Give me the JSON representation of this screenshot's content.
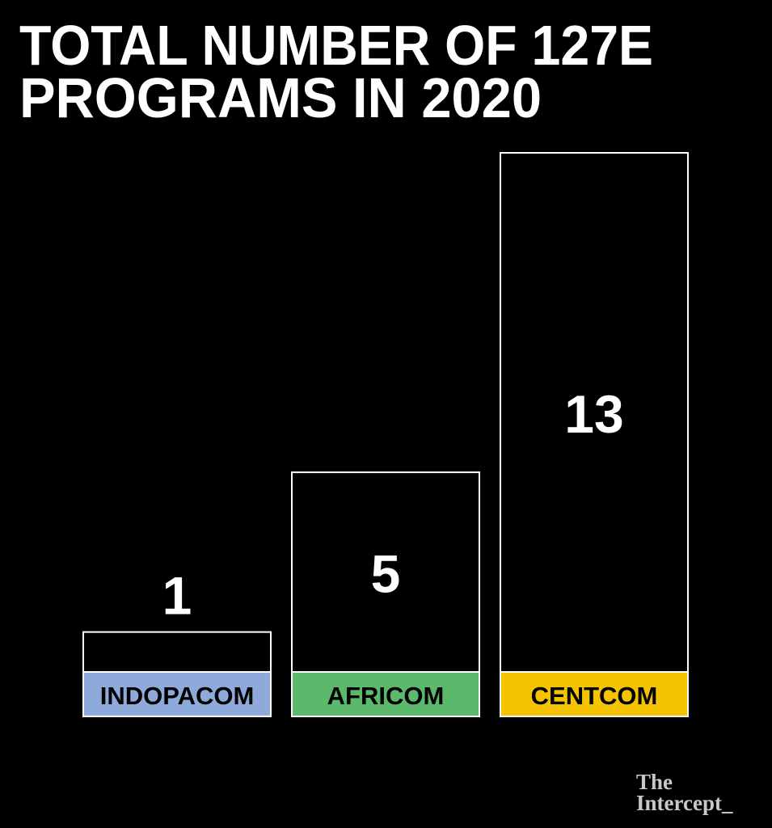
{
  "chart_data": {
    "type": "bar",
    "title": [
      "TOTAL NUMBER OF 127E",
      "PROGRAMS IN 2020"
    ],
    "categories": [
      "INDOPACOM",
      "AFRICOM",
      "CENTCOM"
    ],
    "values": [
      1,
      5,
      13
    ],
    "colors": [
      "#8eaadb",
      "#5cb96b",
      "#f5c400"
    ],
    "bar_color": "#000000",
    "source": [
      "The",
      "Intercept_"
    ]
  }
}
